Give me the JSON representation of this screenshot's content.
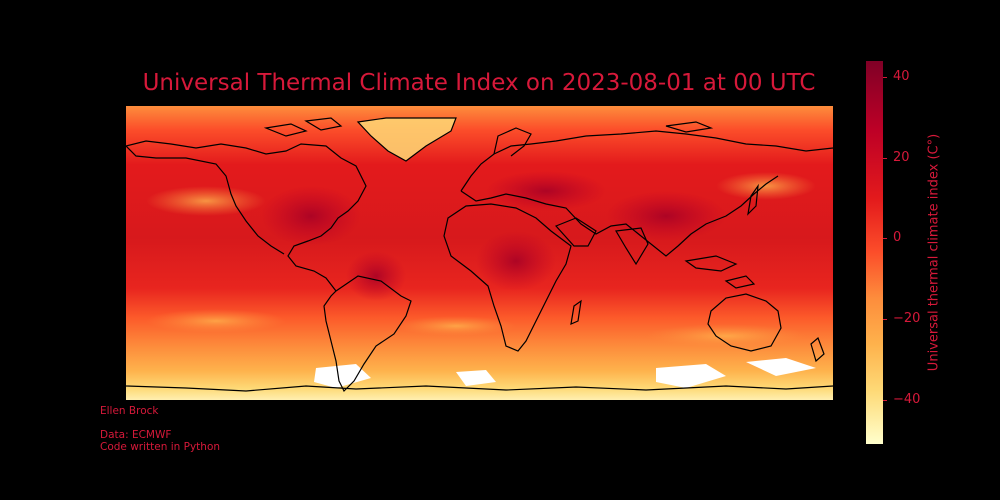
{
  "title": "Universal Thermal Climate Index on 2023-08-01 at 00 UTC",
  "map": {
    "projection": "plate-carree",
    "extent_lon": [
      -180,
      180
    ],
    "extent_lat": [
      -90,
      90
    ],
    "variable": "Universal Thermal Climate Index",
    "coastline_color": "#000000",
    "gridlines": false
  },
  "colorbar": {
    "label": "Universal thermal climate index (C°)",
    "colormap": "YlOrRd",
    "range": [
      -51,
      44
    ],
    "ticks": [
      {
        "value": 40,
        "label": "40"
      },
      {
        "value": 20,
        "label": "20"
      },
      {
        "value": 0,
        "label": "0"
      },
      {
        "value": -20,
        "label": "−20"
      },
      {
        "value": -40,
        "label": "−40"
      }
    ],
    "colors": [
      "#800026",
      "#bd0026",
      "#e31a1c",
      "#fc4e2a",
      "#fd8d3c",
      "#feb24c",
      "#fed976",
      "#ffffcc"
    ]
  },
  "credits": {
    "author": "Ellen Brock",
    "data_source": "Data: ECMWF",
    "code_note": "Code written in Python"
  },
  "text_color": "#d7193a",
  "background_color": "#000000"
}
